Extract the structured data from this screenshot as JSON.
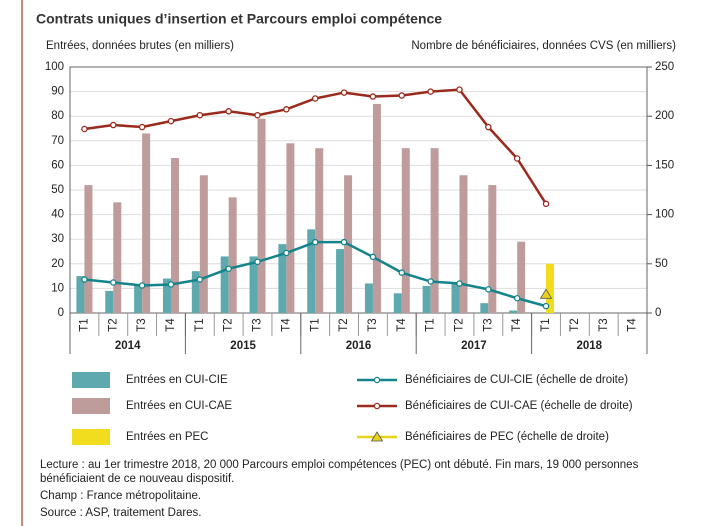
{
  "chart_data": {
    "type": "combo",
    "title": "Contrats uniques d’insertion et Parcours emploi compétence",
    "y_label": "Entrées, données brutes (en milliers)",
    "y2_label": "Nombre de bénéficiaires, données CVS (en milliers)",
    "categories": [
      "T1",
      "T2",
      "T3",
      "T4",
      "T1",
      "T2",
      "T3",
      "T4",
      "T1",
      "T2",
      "T3",
      "T4",
      "T1",
      "T2",
      "T3",
      "T4",
      "T1",
      "T2",
      "T3",
      "T4"
    ],
    "years": [
      "2014",
      "2015",
      "2016",
      "2017",
      "2018"
    ],
    "ylim": [
      0,
      100
    ],
    "yticks": [
      0,
      10,
      20,
      30,
      40,
      50,
      60,
      70,
      80,
      90,
      100
    ],
    "y2lim": [
      0,
      250
    ],
    "y2ticks": [
      0,
      50,
      100,
      150,
      200,
      250
    ],
    "grid": true,
    "series": [
      {
        "name": "Entrées en CUI-CIE",
        "type": "bar",
        "color": "#5ea9ad",
        "values": [
          15,
          9,
          11,
          14,
          17,
          23,
          23,
          28,
          34,
          26,
          12,
          8,
          11,
          12,
          4,
          1,
          null,
          null,
          null,
          null
        ]
      },
      {
        "name": "Entrées en CUI-CAE",
        "type": "bar",
        "color": "#bf9c9c",
        "values": [
          52,
          45,
          73,
          63,
          56,
          47,
          79,
          69,
          67,
          56,
          85,
          67,
          67,
          56,
          52,
          29,
          null,
          null,
          null,
          null
        ]
      },
      {
        "name": "Entrées en PEC",
        "type": "bar",
        "color": "#f2dc1e",
        "values": [
          null,
          null,
          null,
          null,
          null,
          null,
          null,
          null,
          null,
          null,
          null,
          null,
          null,
          null,
          null,
          null,
          20,
          null,
          null,
          null
        ]
      },
      {
        "name": "Bénéficiaires de CUI-CIE (échelle de droite)",
        "type": "line",
        "axis": "y2",
        "color": "#14838b",
        "values": [
          34,
          31,
          28,
          29,
          34,
          45,
          52,
          61,
          72,
          72,
          57,
          41,
          32,
          30,
          24,
          15,
          7,
          null,
          null,
          null
        ]
      },
      {
        "name": "Bénéficiaires de CUI-CAE (échelle de droite)",
        "type": "line",
        "axis": "y2",
        "color": "#9b2a1c",
        "values": [
          187,
          191,
          189,
          195,
          201,
          205,
          201,
          207,
          218,
          224,
          220,
          221,
          225,
          227,
          189,
          157,
          111,
          null,
          null,
          null
        ]
      },
      {
        "name": "Bénéficiaires de PEC (échelle de droite)",
        "type": "triangle",
        "axis": "y2",
        "color": "#e8d31c",
        "values": [
          null,
          null,
          null,
          null,
          null,
          null,
          null,
          null,
          null,
          null,
          null,
          null,
          null,
          null,
          null,
          null,
          19,
          null,
          null,
          null
        ]
      }
    ],
    "notes": [
      "Lecture : au 1er trimestre 2018, 20 000 Parcours emploi compétences (PEC) ont débuté. Fin mars, 19 000 personnes",
      "bénéficiaient de ce nouveau dispositif.",
      "Champ : France métropolitaine.",
      "Source : ASP, traitement Dares."
    ]
  }
}
